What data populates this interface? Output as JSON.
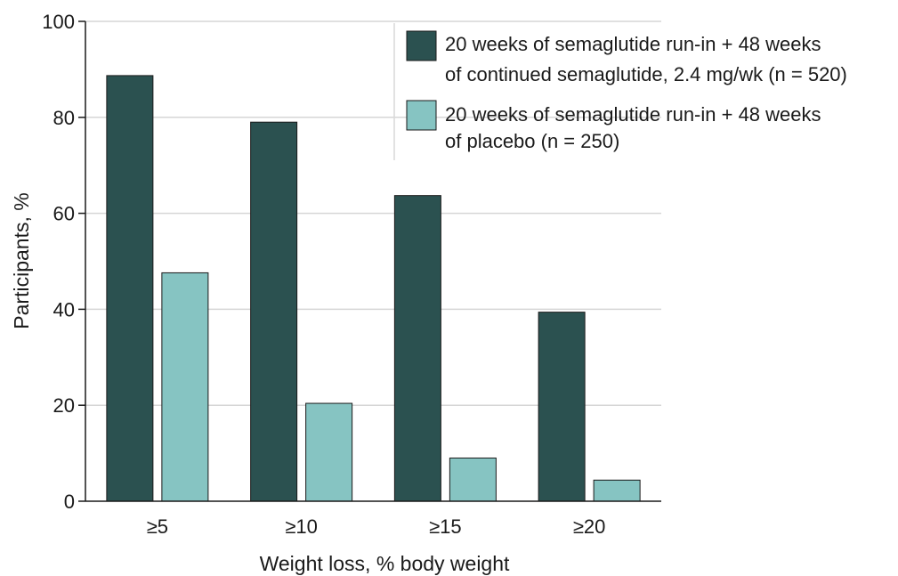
{
  "chart_data": {
    "type": "bar",
    "categories": [
      "≥5",
      "≥10",
      "≥15",
      "≥20"
    ],
    "series": [
      {
        "name_lines": [
          "20 weeks of semaglutide run-in + 48 weeks",
          "of continued semaglutide, 2.4 mg/wk (n = 520)"
        ],
        "color": "#2b5150",
        "values": [
          88.7,
          79.0,
          63.7,
          39.4
        ]
      },
      {
        "name_lines": [
          "20 weeks of semaglutide run-in + 48 weeks",
          "of placebo (n = 250)"
        ],
        "color": "#86c4c2",
        "values": [
          47.6,
          20.4,
          9.0,
          4.4
        ]
      }
    ],
    "xlabel": "Weight loss, % body weight",
    "ylabel": "Participants, %",
    "ylim": [
      0,
      100
    ],
    "yticks": [
      0,
      20,
      40,
      60,
      80,
      100
    ],
    "grid": "horizontal",
    "legend_position": "top-right"
  }
}
